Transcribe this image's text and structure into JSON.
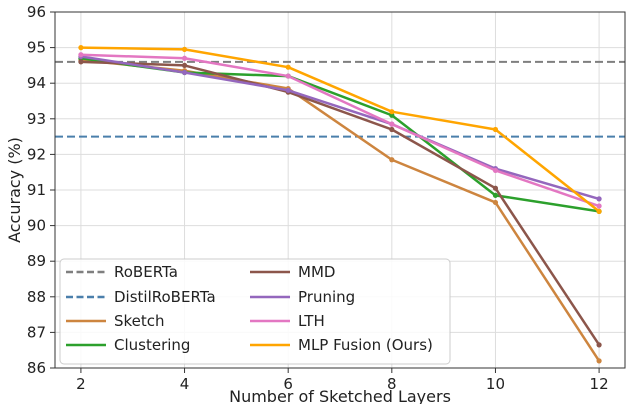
{
  "chart_data": {
    "type": "line",
    "xlabel": "Number of Sketched Layers",
    "ylabel": "Accuracy (%)",
    "x": [
      2,
      4,
      6,
      8,
      10,
      12
    ],
    "xlim": [
      1.5,
      12.5
    ],
    "ylim": [
      86,
      96
    ],
    "xticks": [
      "2",
      "4",
      "6",
      "8",
      "10",
      "12"
    ],
    "yticks": [
      "86",
      "87",
      "88",
      "89",
      "90",
      "91",
      "92",
      "93",
      "94",
      "95",
      "96"
    ],
    "grid": true,
    "legend_position": "lower-left",
    "baselines": [
      {
        "name": "RoBERTa",
        "value": 94.6,
        "color": "#7f7f7f",
        "style": "dashed"
      },
      {
        "name": "DistilRoBERTa",
        "value": 92.5,
        "color": "#4a7fab",
        "style": "dashed"
      }
    ],
    "series": [
      {
        "name": "Sketch",
        "color": "#cd853f",
        "values": [
          94.65,
          94.35,
          93.85,
          91.85,
          90.65,
          86.2
        ]
      },
      {
        "name": "Clustering",
        "color": "#2ca02c",
        "values": [
          94.7,
          94.3,
          94.2,
          93.1,
          90.85,
          90.4
        ]
      },
      {
        "name": "MMD",
        "color": "#8c564b",
        "values": [
          94.6,
          94.5,
          93.75,
          92.7,
          91.05,
          86.65
        ]
      },
      {
        "name": "Pruning",
        "color": "#9467bd",
        "values": [
          94.75,
          94.3,
          93.8,
          92.85,
          91.6,
          90.75
        ]
      },
      {
        "name": "LTH",
        "color": "#e377c2",
        "values": [
          94.8,
          94.7,
          94.2,
          92.85,
          91.55,
          90.55
        ]
      },
      {
        "name": "MLP Fusion (Ours)",
        "color": "#ffa500",
        "values": [
          95.0,
          94.95,
          94.45,
          93.2,
          92.7,
          90.4
        ]
      }
    ]
  }
}
